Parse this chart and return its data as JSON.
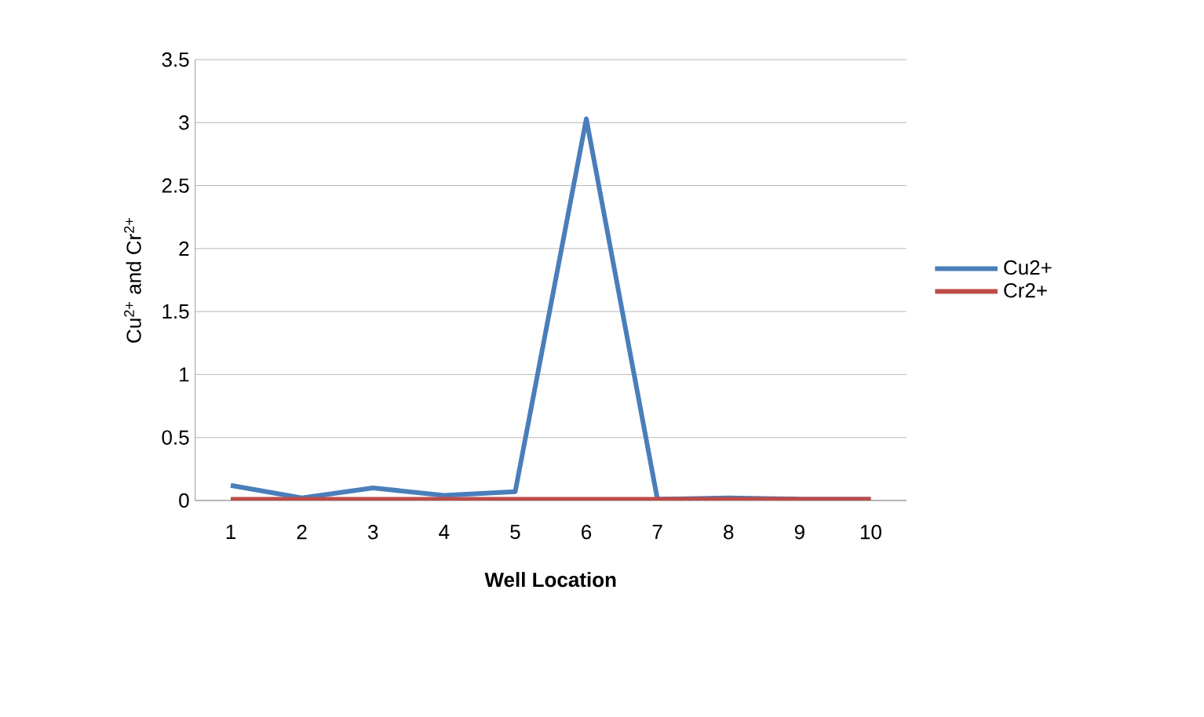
{
  "chart_data": {
    "type": "line",
    "xlabel": "Well Location",
    "ylabel": "Cu$^{2+}$ and Cr$^{2+}$",
    "categories": [
      "1",
      "2",
      "3",
      "4",
      "5",
      "6",
      "7",
      "8",
      "9",
      "10"
    ],
    "series": [
      {
        "name": "Cu2+",
        "color": "#4a7ebb",
        "values": [
          0.12,
          0.02,
          0.1,
          0.04,
          0.07,
          3.03,
          0.01,
          0.02,
          0.01,
          0.01
        ]
      },
      {
        "name": "Cr2+",
        "color": "#be4b48",
        "values": [
          0.01,
          0.01,
          0.01,
          0.01,
          0.01,
          0.01,
          0.01,
          0.01,
          0.01,
          0.01
        ]
      }
    ],
    "ylim": [
      0,
      3.5
    ],
    "yticks": [
      0,
      0.5,
      1,
      1.5,
      2,
      2.5,
      3,
      3.5
    ],
    "grid": "y",
    "legend": "right",
    "marker": "none",
    "line_style": "solid"
  }
}
